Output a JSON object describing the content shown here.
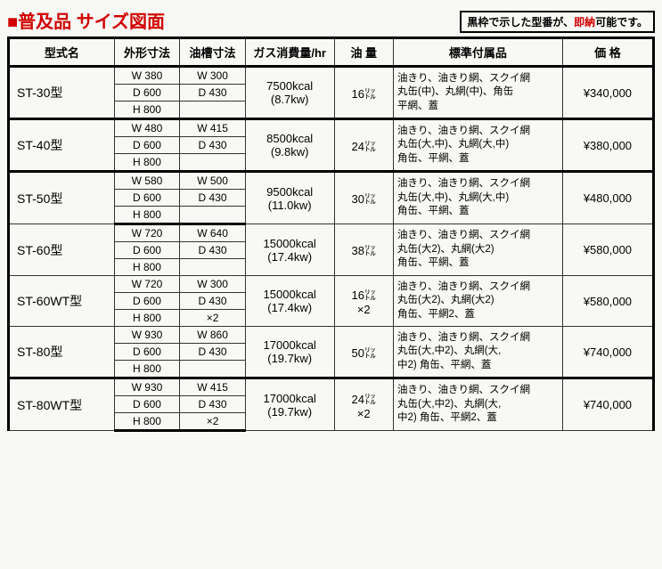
{
  "title_prefix": "■",
  "title_text": "普及品 サイズ図面",
  "note_pre": "黒枠で示した型番が、",
  "note_red": "即納",
  "note_post": "可能です。",
  "headers": {
    "model": "型式名",
    "outer": "外形寸法",
    "tank": "油槽寸法",
    "gas": "ガス消費量/hr",
    "oil": "油 量",
    "acc": "標準付属品",
    "price": "価 格"
  },
  "rows": [
    {
      "model": "ST-30型",
      "emph": true,
      "outer": [
        "W 380",
        "D 600",
        "H 800"
      ],
      "tank": [
        "W 300",
        "D 430",
        ""
      ],
      "gas": "7500kcal\n(8.7kw)",
      "oil": "16㍑",
      "acc": "油きり、油きり網、スクイ網\n丸缶(中)、丸網(中)、角缶\n平網、蓋",
      "price": "¥340,000"
    },
    {
      "model": "ST-40型",
      "emph": true,
      "outer": [
        "W 480",
        "D 600",
        "H 800"
      ],
      "tank": [
        "W 415",
        "D 430",
        ""
      ],
      "gas": "8500kcal\n(9.8kw)",
      "oil": "24㍑",
      "acc": "油きり、油きり網、スクイ網\n丸缶(大,中)、丸網(大,中)\n角缶、平網、蓋",
      "price": "¥380,000"
    },
    {
      "model": "ST-50型",
      "emph": true,
      "outer": [
        "W 580",
        "D 600",
        "H 800"
      ],
      "tank": [
        "W 500",
        "D 430",
        ""
      ],
      "gas": "9500kcal\n(11.0kw)",
      "oil": "30㍑",
      "acc": "油きり、油きり網、スクイ網\n丸缶(大,中)、丸網(大,中)\n角缶、平網、蓋",
      "price": "¥480,000"
    },
    {
      "model": "ST-60型",
      "emph": false,
      "outer": [
        "W 720",
        "D 600",
        "H 800"
      ],
      "tank": [
        "W 640",
        "D 430",
        ""
      ],
      "gas": "15000kcal\n(17.4kw)",
      "oil": "38㍑",
      "acc": "油きり、油きり網、スクイ網\n丸缶(大2)、丸網(大2)\n角缶、平網、蓋",
      "price": "¥580,000"
    },
    {
      "model": "ST-60WT型",
      "emph": false,
      "outer": [
        "W 720",
        "D 600",
        "H 800"
      ],
      "tank": [
        "W 300",
        "D 430",
        "×2"
      ],
      "gas": "15000kcal\n(17.4kw)",
      "oil": "16㍑\n×2",
      "acc": "油きり、油きり網、スクイ網\n丸缶(大2)、丸網(大2)\n角缶、平網2、蓋",
      "price": "¥580,000"
    },
    {
      "model": "ST-80型",
      "emph": false,
      "outer": [
        "W 930",
        "D 600",
        "H 800"
      ],
      "tank": [
        "W 860",
        "D 430",
        ""
      ],
      "gas": "17000kcal\n(19.7kw)",
      "oil": "50㍑",
      "acc": "油きり、油きり網、スクイ網\n丸缶(大,中2)、丸網(大,\n中2) 角缶、平網、蓋",
      "price": "¥740,000"
    },
    {
      "model": "ST-80WT型",
      "emph": true,
      "outer": [
        "W 930",
        "D 600",
        "H 800"
      ],
      "tank": [
        "W 415",
        "D 430",
        "×2"
      ],
      "gas": "17000kcal\n(19.7kw)",
      "oil": "24㍑\n×2",
      "acc": "油きり、油きり網、スクイ網\n丸缶(大,中2)、丸網(大,\n中2) 角缶、平網2、蓋",
      "price": "¥740,000"
    }
  ],
  "table_style": {
    "border_color": "#333333",
    "emph_border_color": "#000000",
    "background": "#f8f8f5",
    "title_color": "#d00000"
  }
}
